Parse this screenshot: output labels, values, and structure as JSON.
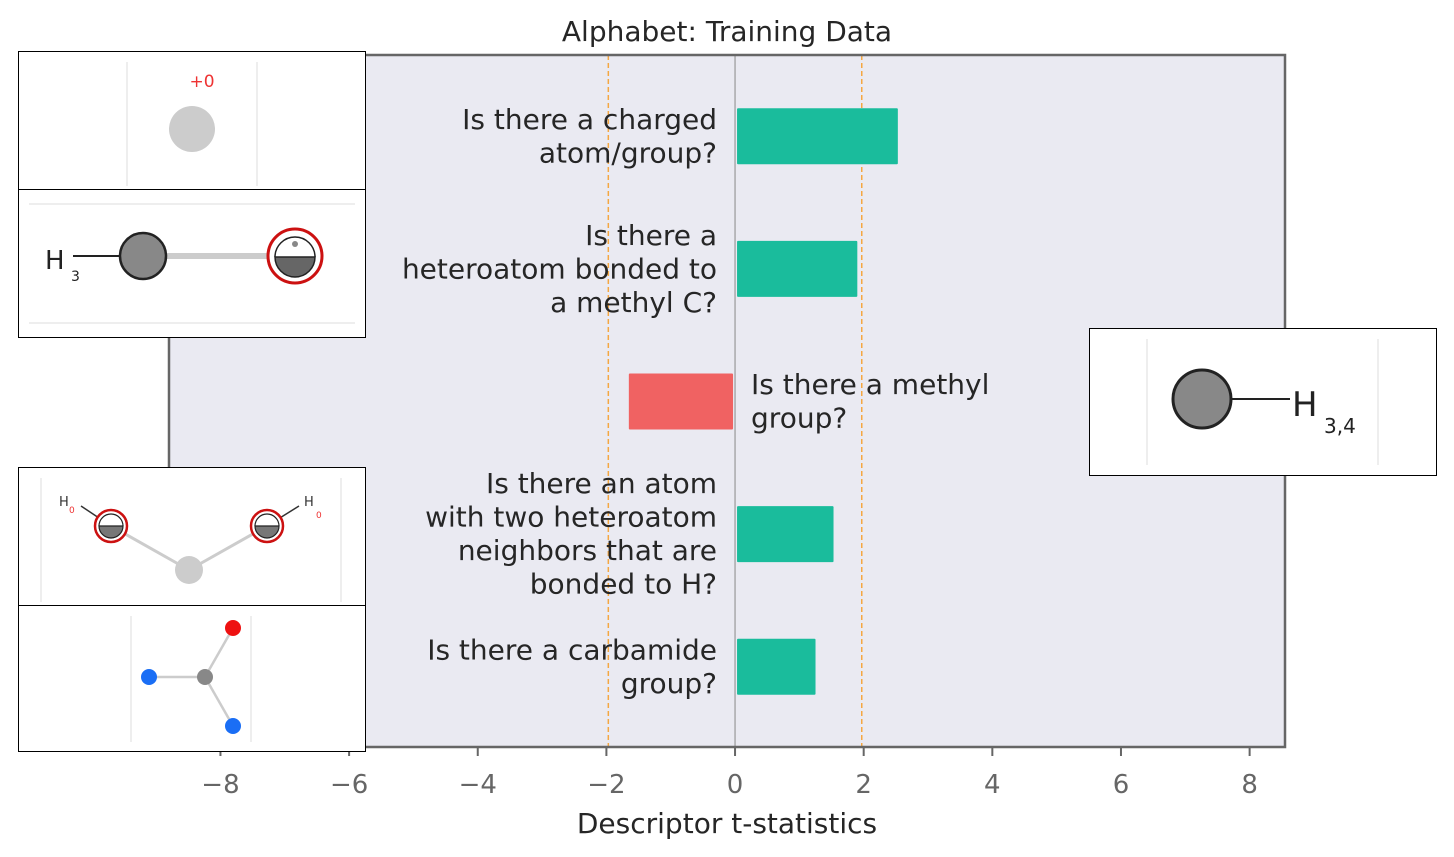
{
  "chart_data": {
    "type": "bar",
    "orientation": "horizontal",
    "title": "Alphabet: Training Data",
    "xlabel": "Descriptor t-statistics",
    "xlim": [
      -8.8,
      8.55
    ],
    "xticks": [
      -8,
      -6,
      -4,
      -2,
      0,
      2,
      4,
      6,
      8
    ],
    "xtick_labels": [
      "−8",
      "−6",
      "−4",
      "−2",
      "0",
      "2",
      "4",
      "6",
      "8"
    ],
    "significance_lines": [
      -1.97,
      1.97
    ],
    "grid": false,
    "bars": [
      {
        "label_lines": [
          "Is there a charged",
          "atom/group?"
        ],
        "value": 2.5
      },
      {
        "label_lines": [
          "Is there a",
          "heteroatom bonded to",
          "a methyl C?"
        ],
        "value": 1.87
      },
      {
        "label_lines": [
          "Is there a methyl",
          "group?"
        ],
        "value": -1.62
      },
      {
        "label_lines": [
          "Is there an atom",
          "with two heteroatom",
          "neighbors that are",
          "bonded to H?"
        ],
        "value": 1.5
      },
      {
        "label_lines": [
          "Is there a carbamide",
          "group?"
        ],
        "value": 1.22
      }
    ],
    "colors": {
      "positive": "#1abc9c",
      "negative": "#f06262",
      "plot_background": "#eaeaf2",
      "significance_line": "#f5a742",
      "zero_line": "#999999",
      "frame": "#666666",
      "text": "#262626",
      "tick_text": "#666666"
    }
  },
  "insets": {
    "charged": {
      "charge_label": "+0"
    },
    "methyl_bond": {
      "atom_label": "H",
      "subscript": "3"
    },
    "methyl_group": {
      "atom_label": "H",
      "subscript": "3,4"
    },
    "two_hetero": {
      "left_label": "H",
      "left_sub": "0",
      "right_label": "H",
      "right_sub": "0"
    }
  }
}
